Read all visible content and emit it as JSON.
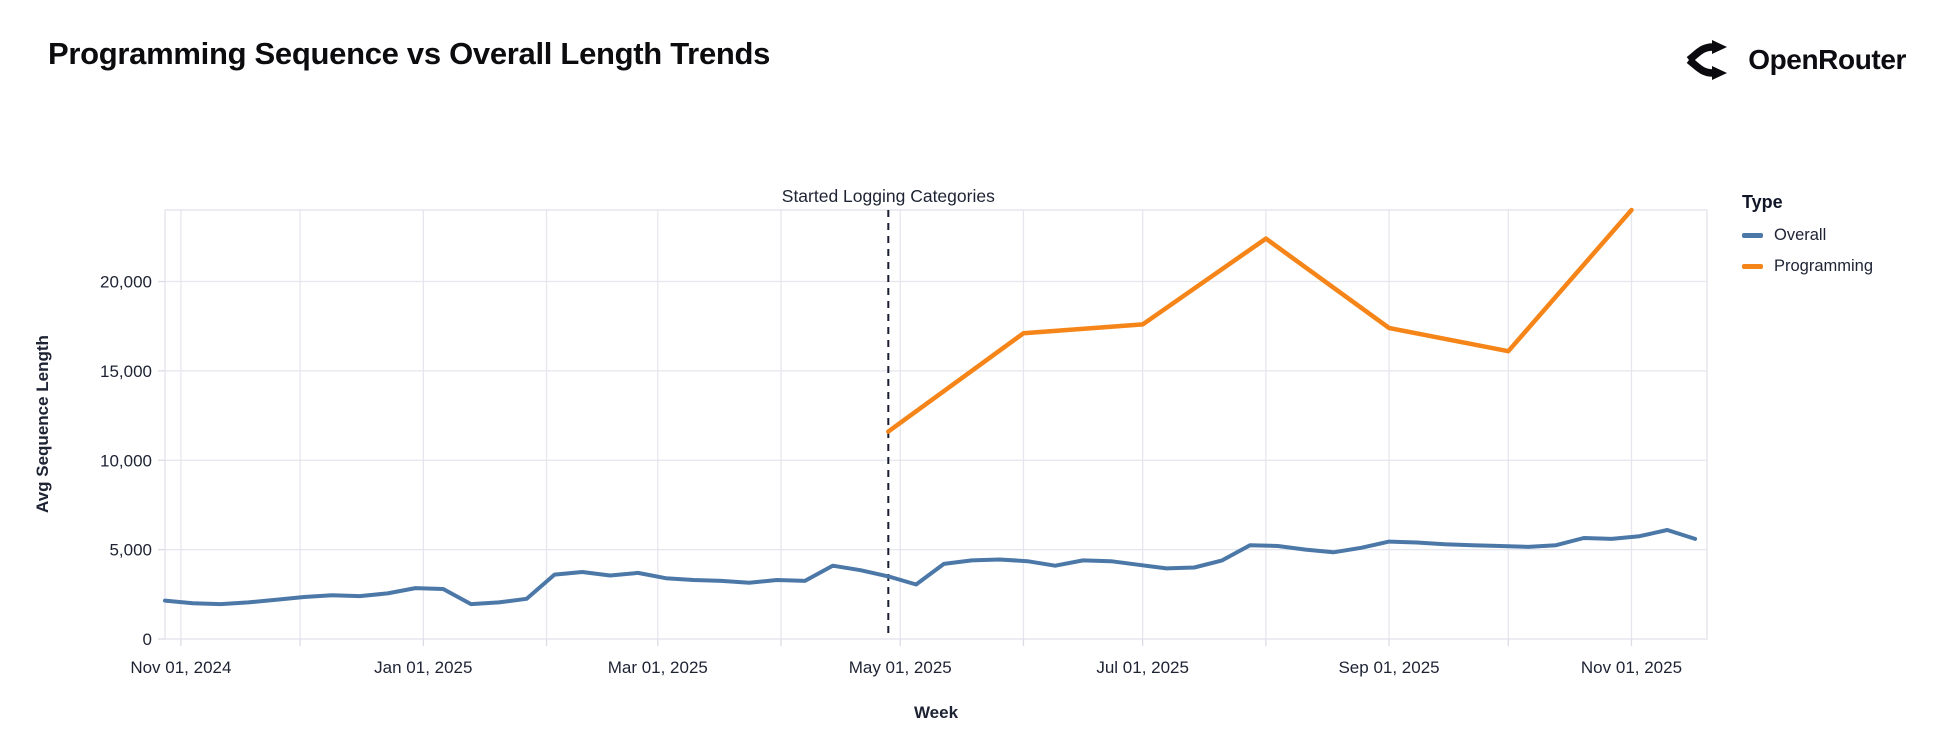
{
  "header": {
    "title": "Programming Sequence vs Overall Length Trends",
    "brand": "OpenRouter"
  },
  "colors": {
    "overall_line": "#4c78a8",
    "programming_line": "#f58518",
    "gridline": "#e6e6ee",
    "plot_border": "#e2e2ea",
    "tick": "#dcdce4",
    "axis_text": "#1d2333",
    "annotation_line": "#181d31",
    "background": "#ffffff",
    "title_text": "#0c0c0f"
  },
  "chart_data": {
    "type": "line",
    "title": "Programming Sequence vs Overall Length Trends",
    "xlabel": "Week",
    "ylabel": "Avg Sequence Length",
    "x_domain": [
      "2024-10-28",
      "2025-11-20"
    ],
    "ylim": [
      0,
      24000
    ],
    "grid": true,
    "y_ticks": [
      {
        "value": 0,
        "label": "0"
      },
      {
        "value": 5000,
        "label": "5,000"
      },
      {
        "value": 10000,
        "label": "10,000"
      },
      {
        "value": 15000,
        "label": "15,000"
      },
      {
        "value": 20000,
        "label": "20,000"
      }
    ],
    "x_ticks": [
      {
        "date": "2024-11-01",
        "label": "Nov 01, 2024"
      },
      {
        "date": "2025-01-01",
        "label": "Jan 01, 2025"
      },
      {
        "date": "2025-03-01",
        "label": "Mar 01, 2025"
      },
      {
        "date": "2025-05-01",
        "label": "May 01, 2025"
      },
      {
        "date": "2025-07-01",
        "label": "Jul 01, 2025"
      },
      {
        "date": "2025-09-01",
        "label": "Sep 01, 2025"
      },
      {
        "date": "2025-11-01",
        "label": "Nov 01, 2025"
      }
    ],
    "x_gridlines": [
      "2024-11-01",
      "2024-12-01",
      "2025-01-01",
      "2025-02-01",
      "2025-03-01",
      "2025-04-01",
      "2025-05-01",
      "2025-06-01",
      "2025-07-01",
      "2025-08-01",
      "2025-09-01",
      "2025-10-01",
      "2025-11-01"
    ],
    "legend": {
      "title": "Type",
      "position": "top-right",
      "entries": [
        {
          "name": "Overall",
          "color": "#4c78a8"
        },
        {
          "name": "Programming",
          "color": "#f58518"
        }
      ]
    },
    "annotation": {
      "label": "Started Logging Categories",
      "date": "2025-04-28"
    },
    "series": [
      {
        "name": "Overall",
        "color": "#4c78a8",
        "stroke_width": 4,
        "points": [
          [
            "2024-10-28",
            2150
          ],
          [
            "2024-11-04",
            2000
          ],
          [
            "2024-11-11",
            1950
          ],
          [
            "2024-11-18",
            2050
          ],
          [
            "2024-11-25",
            2200
          ],
          [
            "2024-12-02",
            2350
          ],
          [
            "2024-12-09",
            2450
          ],
          [
            "2024-12-16",
            2400
          ],
          [
            "2024-12-23",
            2550
          ],
          [
            "2024-12-30",
            2850
          ],
          [
            "2025-01-06",
            2800
          ],
          [
            "2025-01-13",
            1950
          ],
          [
            "2025-01-20",
            2050
          ],
          [
            "2025-01-27",
            2250
          ],
          [
            "2025-02-03",
            3600
          ],
          [
            "2025-02-10",
            3750
          ],
          [
            "2025-02-17",
            3550
          ],
          [
            "2025-02-24",
            3700
          ],
          [
            "2025-03-03",
            3400
          ],
          [
            "2025-03-10",
            3300
          ],
          [
            "2025-03-17",
            3250
          ],
          [
            "2025-03-24",
            3150
          ],
          [
            "2025-03-31",
            3300
          ],
          [
            "2025-04-07",
            3250
          ],
          [
            "2025-04-14",
            4100
          ],
          [
            "2025-04-21",
            3850
          ],
          [
            "2025-04-28",
            3500
          ],
          [
            "2025-05-05",
            3050
          ],
          [
            "2025-05-12",
            4200
          ],
          [
            "2025-05-19",
            4400
          ],
          [
            "2025-05-26",
            4450
          ],
          [
            "2025-06-02",
            4350
          ],
          [
            "2025-06-09",
            4100
          ],
          [
            "2025-06-16",
            4400
          ],
          [
            "2025-06-23",
            4350
          ],
          [
            "2025-06-30",
            4150
          ],
          [
            "2025-07-07",
            3950
          ],
          [
            "2025-07-14",
            4000
          ],
          [
            "2025-07-21",
            4400
          ],
          [
            "2025-07-28",
            5250
          ],
          [
            "2025-08-04",
            5200
          ],
          [
            "2025-08-11",
            5000
          ],
          [
            "2025-08-18",
            4850
          ],
          [
            "2025-08-25",
            5100
          ],
          [
            "2025-09-01",
            5450
          ],
          [
            "2025-09-08",
            5400
          ],
          [
            "2025-09-15",
            5300
          ],
          [
            "2025-09-22",
            5250
          ],
          [
            "2025-09-29",
            5200
          ],
          [
            "2025-10-06",
            5150
          ],
          [
            "2025-10-13",
            5250
          ],
          [
            "2025-10-20",
            5650
          ],
          [
            "2025-10-27",
            5600
          ],
          [
            "2025-11-03",
            5750
          ],
          [
            "2025-11-10",
            6100
          ],
          [
            "2025-11-17",
            5600
          ]
        ]
      },
      {
        "name": "Programming",
        "color": "#f58518",
        "stroke_width": 4.5,
        "points": [
          [
            "2025-04-28",
            11600
          ],
          [
            "2025-06-01",
            17100
          ],
          [
            "2025-07-01",
            17600
          ],
          [
            "2025-08-01",
            22400
          ],
          [
            "2025-09-01",
            17400
          ],
          [
            "2025-10-01",
            16100
          ],
          [
            "2025-11-01",
            24000
          ]
        ]
      }
    ]
  }
}
